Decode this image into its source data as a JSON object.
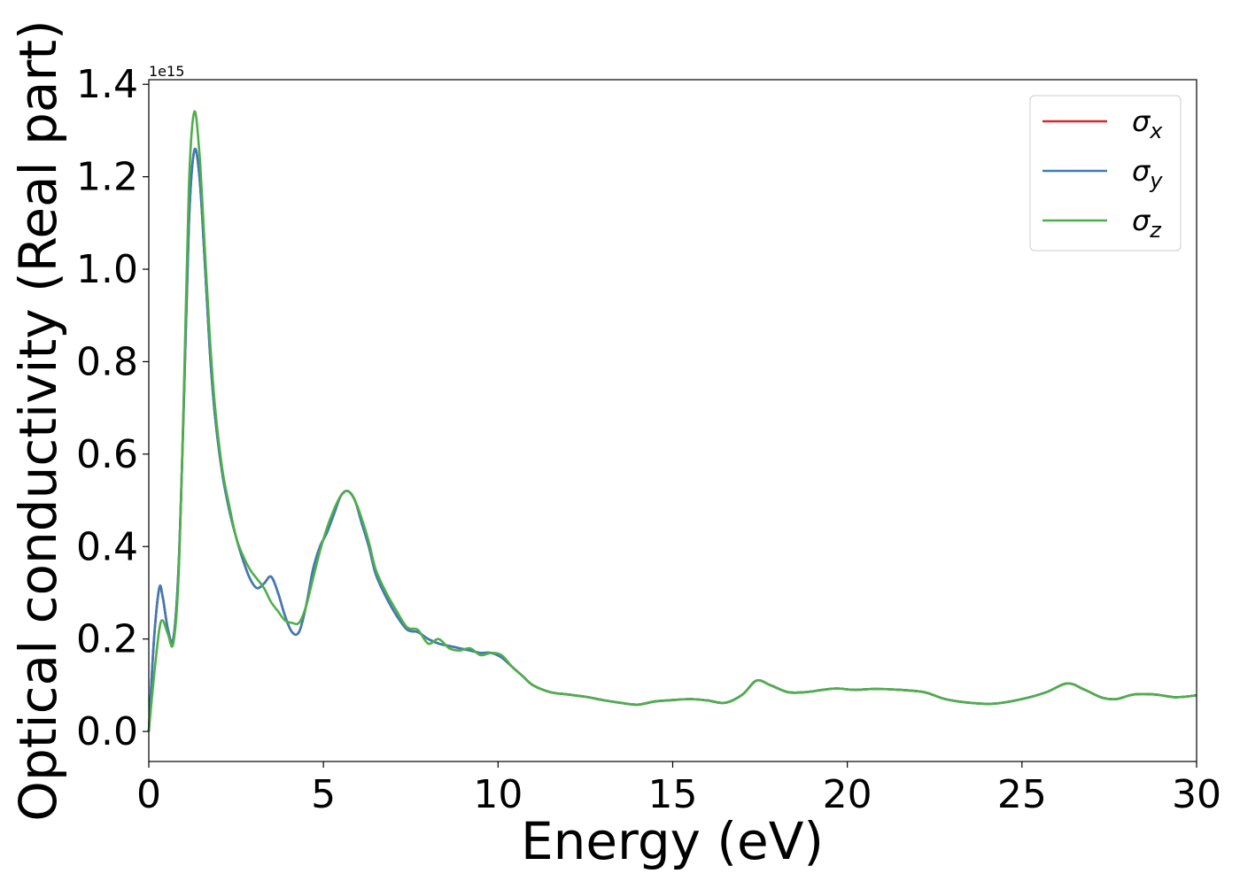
{
  "chart_data": {
    "type": "line",
    "xlabel": "Energy (eV)",
    "ylabel": "Optical conductivity (Real part)",
    "y_offset_label": "1e15",
    "xlim": [
      0,
      30
    ],
    "ylim": [
      -0.065,
      1.41
    ],
    "x_ticks": [
      0,
      5,
      10,
      15,
      20,
      25,
      30
    ],
    "x_tick_labels": [
      "0",
      "5",
      "10",
      "15",
      "20",
      "25",
      "30"
    ],
    "y_ticks": [
      0.0,
      0.2,
      0.4,
      0.6,
      0.8,
      1.0,
      1.2,
      1.4
    ],
    "y_tick_labels": [
      "0.0",
      "0.2",
      "0.4",
      "0.6",
      "0.8",
      "1.0",
      "1.2",
      "1.4"
    ],
    "grid": false,
    "legend_position": "top-right",
    "series": [
      {
        "name": "σx",
        "label_base": "σ",
        "label_sub": "x",
        "color": "#d62728",
        "x": [
          0,
          0.15,
          0.3,
          0.4,
          0.55,
          0.7,
          0.85,
          1.0,
          1.15,
          1.3,
          1.45,
          1.6,
          1.75,
          1.9,
          2.1,
          2.3,
          2.5,
          2.7,
          2.9,
          3.1,
          3.3,
          3.5,
          3.7,
          3.9,
          4.1,
          4.3,
          4.5,
          4.7,
          4.9,
          5.1,
          5.3,
          5.5,
          5.7,
          5.9,
          6.1,
          6.3,
          6.5,
          6.8,
          7.1,
          7.4,
          7.7,
          8.0,
          8.3,
          8.6,
          8.9,
          9.2,
          9.5,
          9.8,
          10.1,
          10.4,
          10.7,
          11.0,
          11.5,
          12.0,
          12.5,
          13.0,
          13.5,
          14.0,
          14.5,
          15.0,
          15.5,
          16.0,
          16.5,
          17.0,
          17.4,
          17.8,
          18.3,
          18.8,
          19.3,
          19.7,
          20.2,
          20.8,
          21.5,
          22.2,
          22.8,
          23.5,
          24.2,
          25.0,
          25.7,
          26.3,
          26.8,
          27.3,
          27.7,
          28.2,
          28.8,
          29.4,
          30.0
        ],
        "values": [
          0.0,
          0.2,
          0.31,
          0.29,
          0.22,
          0.2,
          0.35,
          0.7,
          1.1,
          1.256,
          1.2,
          1.02,
          0.82,
          0.68,
          0.56,
          0.48,
          0.42,
          0.37,
          0.33,
          0.31,
          0.32,
          0.335,
          0.3,
          0.25,
          0.215,
          0.215,
          0.27,
          0.35,
          0.4,
          0.43,
          0.47,
          0.51,
          0.52,
          0.5,
          0.45,
          0.4,
          0.34,
          0.29,
          0.25,
          0.22,
          0.215,
          0.2,
          0.19,
          0.185,
          0.18,
          0.175,
          0.17,
          0.17,
          0.16,
          0.14,
          0.12,
          0.1,
          0.085,
          0.08,
          0.075,
          0.068,
          0.062,
          0.058,
          0.065,
          0.068,
          0.07,
          0.067,
          0.062,
          0.08,
          0.11,
          0.1,
          0.085,
          0.085,
          0.09,
          0.093,
          0.09,
          0.092,
          0.09,
          0.085,
          0.07,
          0.062,
          0.06,
          0.07,
          0.085,
          0.104,
          0.09,
          0.073,
          0.07,
          0.08,
          0.08,
          0.074,
          0.078
        ]
      },
      {
        "name": "σy",
        "label_base": "σ",
        "label_sub": "y",
        "color": "#3d7ab8",
        "x": [
          0,
          0.15,
          0.3,
          0.4,
          0.55,
          0.7,
          0.85,
          1.0,
          1.15,
          1.3,
          1.45,
          1.6,
          1.75,
          1.9,
          2.1,
          2.3,
          2.5,
          2.7,
          2.9,
          3.1,
          3.3,
          3.5,
          3.7,
          3.9,
          4.1,
          4.3,
          4.5,
          4.7,
          4.9,
          5.1,
          5.3,
          5.5,
          5.7,
          5.9,
          6.1,
          6.3,
          6.5,
          6.8,
          7.1,
          7.4,
          7.7,
          8.0,
          8.3,
          8.6,
          8.9,
          9.2,
          9.5,
          9.8,
          10.1,
          10.4,
          10.7,
          11.0,
          11.5,
          12.0,
          12.5,
          13.0,
          13.5,
          14.0,
          14.5,
          15.0,
          15.5,
          16.0,
          16.5,
          17.0,
          17.4,
          17.8,
          18.3,
          18.8,
          19.3,
          19.7,
          20.2,
          20.8,
          21.5,
          22.2,
          22.8,
          23.5,
          24.2,
          25.0,
          25.7,
          26.3,
          26.8,
          27.3,
          27.7,
          28.2,
          28.8,
          29.4,
          30.0
        ],
        "values": [
          0.0,
          0.2,
          0.31,
          0.29,
          0.22,
          0.2,
          0.35,
          0.7,
          1.1,
          1.256,
          1.2,
          1.02,
          0.82,
          0.68,
          0.56,
          0.48,
          0.42,
          0.37,
          0.33,
          0.31,
          0.32,
          0.335,
          0.3,
          0.25,
          0.215,
          0.215,
          0.27,
          0.35,
          0.4,
          0.43,
          0.47,
          0.51,
          0.52,
          0.5,
          0.45,
          0.4,
          0.34,
          0.29,
          0.25,
          0.22,
          0.215,
          0.2,
          0.19,
          0.185,
          0.18,
          0.175,
          0.17,
          0.17,
          0.16,
          0.14,
          0.12,
          0.1,
          0.085,
          0.08,
          0.075,
          0.068,
          0.062,
          0.058,
          0.065,
          0.068,
          0.07,
          0.067,
          0.062,
          0.08,
          0.11,
          0.1,
          0.085,
          0.085,
          0.09,
          0.093,
          0.09,
          0.092,
          0.09,
          0.085,
          0.07,
          0.062,
          0.06,
          0.07,
          0.085,
          0.104,
          0.09,
          0.073,
          0.07,
          0.08,
          0.08,
          0.074,
          0.078
        ]
      },
      {
        "name": "σz",
        "label_base": "σ",
        "label_sub": "z",
        "color": "#4daf4a",
        "x": [
          0,
          0.15,
          0.3,
          0.4,
          0.55,
          0.7,
          0.85,
          1.0,
          1.15,
          1.3,
          1.45,
          1.6,
          1.75,
          1.9,
          2.1,
          2.3,
          2.5,
          2.7,
          2.9,
          3.1,
          3.3,
          3.5,
          3.7,
          3.9,
          4.1,
          4.3,
          4.5,
          4.7,
          4.9,
          5.1,
          5.3,
          5.5,
          5.7,
          5.9,
          6.1,
          6.3,
          6.5,
          6.8,
          7.1,
          7.4,
          7.7,
          8.0,
          8.3,
          8.6,
          8.9,
          9.2,
          9.5,
          9.8,
          10.1,
          10.4,
          10.7,
          11.0,
          11.5,
          12.0,
          12.5,
          13.0,
          13.5,
          14.0,
          14.5,
          15.0,
          15.5,
          16.0,
          16.5,
          17.0,
          17.4,
          17.8,
          18.3,
          18.8,
          19.3,
          19.7,
          20.2,
          20.8,
          21.5,
          22.2,
          22.8,
          23.5,
          24.2,
          25.0,
          25.7,
          26.3,
          26.8,
          27.3,
          27.7,
          28.2,
          28.8,
          29.4,
          30.0
        ],
        "values": [
          0.0,
          0.12,
          0.22,
          0.24,
          0.21,
          0.19,
          0.33,
          0.72,
          1.18,
          1.34,
          1.25,
          1.05,
          0.85,
          0.7,
          0.57,
          0.49,
          0.42,
          0.38,
          0.35,
          0.33,
          0.31,
          0.28,
          0.26,
          0.24,
          0.235,
          0.235,
          0.27,
          0.33,
          0.39,
          0.44,
          0.48,
          0.51,
          0.52,
          0.5,
          0.46,
          0.41,
          0.35,
          0.3,
          0.26,
          0.225,
          0.22,
          0.19,
          0.2,
          0.18,
          0.175,
          0.18,
          0.165,
          0.17,
          0.165,
          0.14,
          0.12,
          0.1,
          0.085,
          0.08,
          0.075,
          0.068,
          0.062,
          0.058,
          0.065,
          0.068,
          0.07,
          0.067,
          0.062,
          0.08,
          0.11,
          0.1,
          0.085,
          0.085,
          0.09,
          0.093,
          0.09,
          0.092,
          0.09,
          0.085,
          0.07,
          0.062,
          0.06,
          0.07,
          0.085,
          0.104,
          0.09,
          0.073,
          0.07,
          0.08,
          0.08,
          0.074,
          0.078
        ]
      }
    ]
  }
}
